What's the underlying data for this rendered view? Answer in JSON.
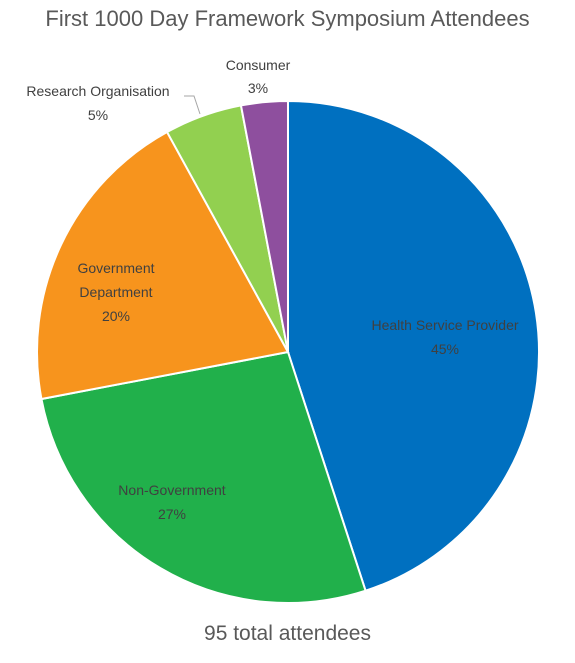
{
  "chart_data": {
    "type": "pie",
    "title": "First 1000 Day Framework Symposium Attendees",
    "footer": "95 total attendees",
    "slices": [
      {
        "label": "Health Service Provider",
        "value": 45,
        "value_label": "45%",
        "color": "#0070C0"
      },
      {
        "label": "Non-Government",
        "value": 27,
        "value_label": "27%",
        "color": "#21B04B"
      },
      {
        "label": "Government Department",
        "value": 20,
        "value_label": "20%",
        "color": "#F7941D"
      },
      {
        "label": "Research Organisation",
        "value": 5,
        "value_label": "5%",
        "color": "#92D050"
      },
      {
        "label": "Consumer",
        "value": 3,
        "value_label": "3%",
        "color": "#8E4F9E"
      }
    ]
  }
}
